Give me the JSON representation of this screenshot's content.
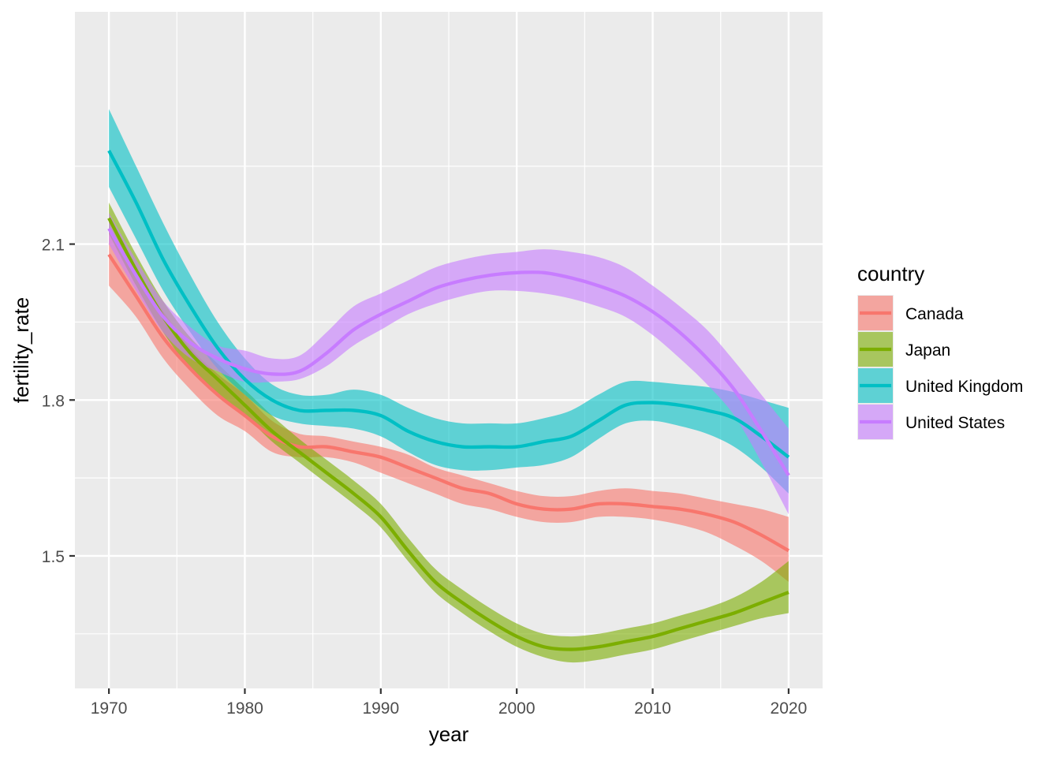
{
  "chart_data": {
    "type": "line",
    "title": "",
    "xlabel": "year",
    "ylabel": "fertility_rate",
    "xlim": [
      1967.5,
      2022.5
    ],
    "ylim": [
      1.245,
      2.547
    ],
    "x_ticks": [
      1970,
      1980,
      1990,
      2000,
      2010,
      2020
    ],
    "x_tick_labels": [
      "1970",
      "1980",
      "1990",
      "2000",
      "2010",
      "2020"
    ],
    "y_ticks": [
      1.5,
      1.8,
      2.1
    ],
    "y_tick_labels": [
      "1.5",
      "1.8",
      "2.1"
    ],
    "grid": true,
    "background": "#ebebeb",
    "legend": {
      "title": "country",
      "position": "right"
    },
    "x": [
      1970,
      1972,
      1974,
      1976,
      1978,
      1980,
      1982,
      1984,
      1986,
      1988,
      1990,
      1992,
      1994,
      1996,
      1998,
      2000,
      2002,
      2004,
      2006,
      2008,
      2010,
      2012,
      2014,
      2016,
      2018,
      2020
    ],
    "series": [
      {
        "name": "Canada",
        "color": "#F8766D",
        "values": [
          2.08,
          2.0,
          1.92,
          1.86,
          1.81,
          1.77,
          1.73,
          1.71,
          1.71,
          1.7,
          1.69,
          1.67,
          1.65,
          1.63,
          1.62,
          1.6,
          1.59,
          1.59,
          1.6,
          1.6,
          1.595,
          1.59,
          1.58,
          1.565,
          1.54,
          1.51
        ],
        "lower": [
          2.02,
          1.96,
          1.88,
          1.82,
          1.77,
          1.74,
          1.7,
          1.69,
          1.69,
          1.68,
          1.66,
          1.64,
          1.62,
          1.6,
          1.59,
          1.575,
          1.565,
          1.565,
          1.575,
          1.575,
          1.57,
          1.56,
          1.545,
          1.52,
          1.49,
          1.45
        ],
        "upper": [
          2.13,
          2.05,
          1.97,
          1.9,
          1.85,
          1.81,
          1.76,
          1.735,
          1.73,
          1.72,
          1.71,
          1.695,
          1.67,
          1.655,
          1.64,
          1.625,
          1.615,
          1.615,
          1.625,
          1.63,
          1.625,
          1.62,
          1.61,
          1.6,
          1.59,
          1.575
        ]
      },
      {
        "name": "Japan",
        "color": "#7CAE00",
        "values": [
          2.15,
          2.05,
          1.96,
          1.89,
          1.84,
          1.79,
          1.74,
          1.7,
          1.66,
          1.62,
          1.575,
          1.51,
          1.45,
          1.41,
          1.375,
          1.345,
          1.325,
          1.32,
          1.325,
          1.335,
          1.345,
          1.36,
          1.375,
          1.39,
          1.41,
          1.43
        ],
        "lower": [
          2.12,
          2.02,
          1.93,
          1.86,
          1.81,
          1.77,
          1.72,
          1.68,
          1.64,
          1.6,
          1.555,
          1.49,
          1.43,
          1.39,
          1.355,
          1.325,
          1.305,
          1.295,
          1.3,
          1.31,
          1.32,
          1.335,
          1.35,
          1.365,
          1.38,
          1.39
        ],
        "upper": [
          2.18,
          2.08,
          1.99,
          1.92,
          1.87,
          1.82,
          1.77,
          1.725,
          1.685,
          1.645,
          1.6,
          1.535,
          1.475,
          1.435,
          1.4,
          1.37,
          1.35,
          1.345,
          1.35,
          1.36,
          1.37,
          1.385,
          1.4,
          1.42,
          1.45,
          1.49
        ]
      },
      {
        "name": "United Kingdom",
        "color": "#00BFC4",
        "values": [
          2.28,
          2.18,
          2.07,
          1.98,
          1.9,
          1.84,
          1.8,
          1.78,
          1.78,
          1.78,
          1.77,
          1.74,
          1.72,
          1.71,
          1.71,
          1.71,
          1.72,
          1.73,
          1.76,
          1.79,
          1.795,
          1.79,
          1.78,
          1.765,
          1.73,
          1.69
        ],
        "lower": [
          2.21,
          2.11,
          2.01,
          1.93,
          1.86,
          1.81,
          1.77,
          1.755,
          1.75,
          1.745,
          1.73,
          1.7,
          1.675,
          1.665,
          1.665,
          1.67,
          1.675,
          1.69,
          1.725,
          1.755,
          1.76,
          1.75,
          1.735,
          1.71,
          1.67,
          1.62
        ],
        "upper": [
          2.36,
          2.25,
          2.14,
          2.04,
          1.95,
          1.88,
          1.83,
          1.81,
          1.81,
          1.82,
          1.81,
          1.785,
          1.765,
          1.755,
          1.755,
          1.755,
          1.765,
          1.78,
          1.81,
          1.835,
          1.835,
          1.83,
          1.825,
          1.815,
          1.8,
          1.785
        ]
      },
      {
        "name": "United States",
        "color": "#C77CFF",
        "values": [
          2.13,
          2.04,
          1.96,
          1.91,
          1.88,
          1.86,
          1.85,
          1.855,
          1.89,
          1.935,
          1.965,
          1.99,
          2.015,
          2.03,
          2.04,
          2.045,
          2.045,
          2.035,
          2.02,
          2.0,
          1.97,
          1.93,
          1.88,
          1.82,
          1.74,
          1.655
        ],
        "lower": [
          2.1,
          2.01,
          1.93,
          1.88,
          1.855,
          1.835,
          1.835,
          1.84,
          1.865,
          1.905,
          1.935,
          1.965,
          1.985,
          2.0,
          2.01,
          2.01,
          2.005,
          1.995,
          1.98,
          1.96,
          1.925,
          1.88,
          1.83,
          1.77,
          1.68,
          1.58
        ],
        "upper": [
          2.16,
          2.07,
          1.99,
          1.94,
          1.905,
          1.895,
          1.88,
          1.885,
          1.93,
          1.98,
          2.005,
          2.03,
          2.055,
          2.07,
          2.08,
          2.085,
          2.09,
          2.085,
          2.075,
          2.055,
          2.02,
          1.98,
          1.935,
          1.875,
          1.81,
          1.745
        ]
      }
    ]
  }
}
